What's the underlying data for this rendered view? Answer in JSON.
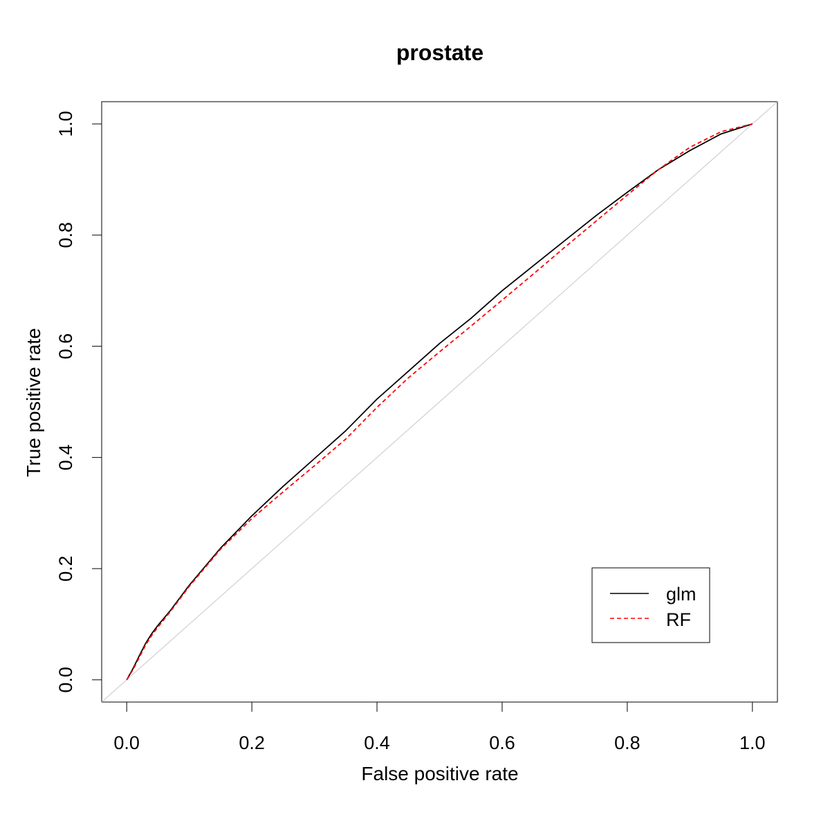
{
  "chart_data": {
    "type": "line",
    "title": "prostate",
    "xlabel": "False positive rate",
    "ylabel": "True positive rate",
    "xlim": [
      -0.04,
      1.04
    ],
    "ylim": [
      -0.04,
      1.04
    ],
    "x_ticks": [
      "0.0",
      "0.2",
      "0.4",
      "0.6",
      "0.8",
      "1.0"
    ],
    "y_ticks": [
      "0.0",
      "0.2",
      "0.4",
      "0.6",
      "0.8",
      "1.0"
    ],
    "x_tick_values": [
      0,
      0.2,
      0.4,
      0.6,
      0.8,
      1.0
    ],
    "y_tick_values": [
      0,
      0.2,
      0.4,
      0.6,
      0.8,
      1.0
    ],
    "grid": false,
    "legend_position": "bottom-right",
    "diagonal_reference": {
      "x": [
        0,
        1
      ],
      "y": [
        0,
        1
      ],
      "color": "#c8c8c8"
    },
    "series": [
      {
        "name": "glm",
        "color": "#000000",
        "style": "solid",
        "x": [
          0,
          0.01,
          0.02,
          0.03,
          0.04,
          0.05,
          0.07,
          0.1,
          0.15,
          0.2,
          0.25,
          0.3,
          0.35,
          0.4,
          0.45,
          0.5,
          0.55,
          0.6,
          0.65,
          0.7,
          0.75,
          0.8,
          0.85,
          0.9,
          0.95,
          1.0
        ],
        "y": [
          0,
          0.02,
          0.043,
          0.065,
          0.083,
          0.098,
          0.125,
          0.17,
          0.237,
          0.295,
          0.348,
          0.398,
          0.448,
          0.505,
          0.555,
          0.605,
          0.65,
          0.7,
          0.745,
          0.79,
          0.835,
          0.877,
          0.918,
          0.952,
          0.982,
          1.0
        ]
      },
      {
        "name": "RF",
        "color": "#ff0000",
        "style": "dashed",
        "x": [
          0,
          0.01,
          0.02,
          0.03,
          0.04,
          0.05,
          0.07,
          0.1,
          0.15,
          0.2,
          0.25,
          0.3,
          0.35,
          0.4,
          0.45,
          0.5,
          0.55,
          0.6,
          0.65,
          0.7,
          0.75,
          0.8,
          0.85,
          0.9,
          0.95,
          1.0
        ],
        "y": [
          0,
          0.018,
          0.04,
          0.062,
          0.08,
          0.095,
          0.123,
          0.168,
          0.235,
          0.29,
          0.338,
          0.385,
          0.433,
          0.49,
          0.543,
          0.59,
          0.636,
          0.683,
          0.73,
          0.778,
          0.825,
          0.872,
          0.918,
          0.958,
          0.986,
          1.0
        ]
      }
    ]
  }
}
